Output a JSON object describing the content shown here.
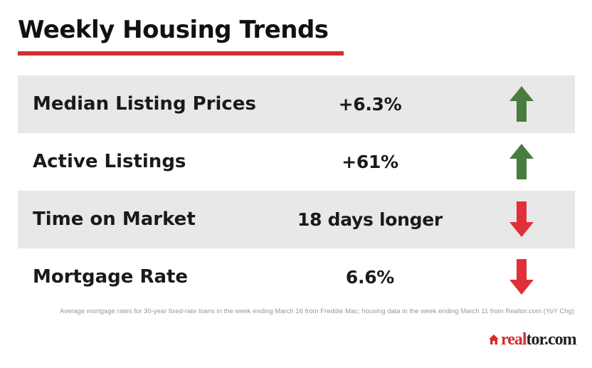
{
  "title": "Weekly Housing Trends",
  "colors": {
    "accent_red": "#d32f2f",
    "up_arrow_green": "#4a7c3f",
    "down_arrow_red": "#e0303a",
    "row_shade": "#e8e8e8"
  },
  "rows": [
    {
      "label": "Median Listing Prices",
      "value": "+6.3%",
      "trend": "up",
      "icon": "arrow-up-icon"
    },
    {
      "label": "Active Listings",
      "value": "+61%",
      "trend": "up",
      "icon": "arrow-up-icon"
    },
    {
      "label": "Time on Market",
      "value": "18 days longer",
      "trend": "down",
      "icon": "arrow-down-icon"
    },
    {
      "label": "Mortgage Rate",
      "value": "6.6%",
      "trend": "down",
      "icon": "arrow-down-icon"
    }
  ],
  "footnote": "Average mortgage rates for 30-year fixed-rate loans in the week ending March 16 from Freddie Mac; housing data in the week ending March 11 from Realtor.com (YoY Chg)",
  "logo": {
    "part1": "real",
    "part2": "tor.com",
    "icon": "house-icon"
  }
}
